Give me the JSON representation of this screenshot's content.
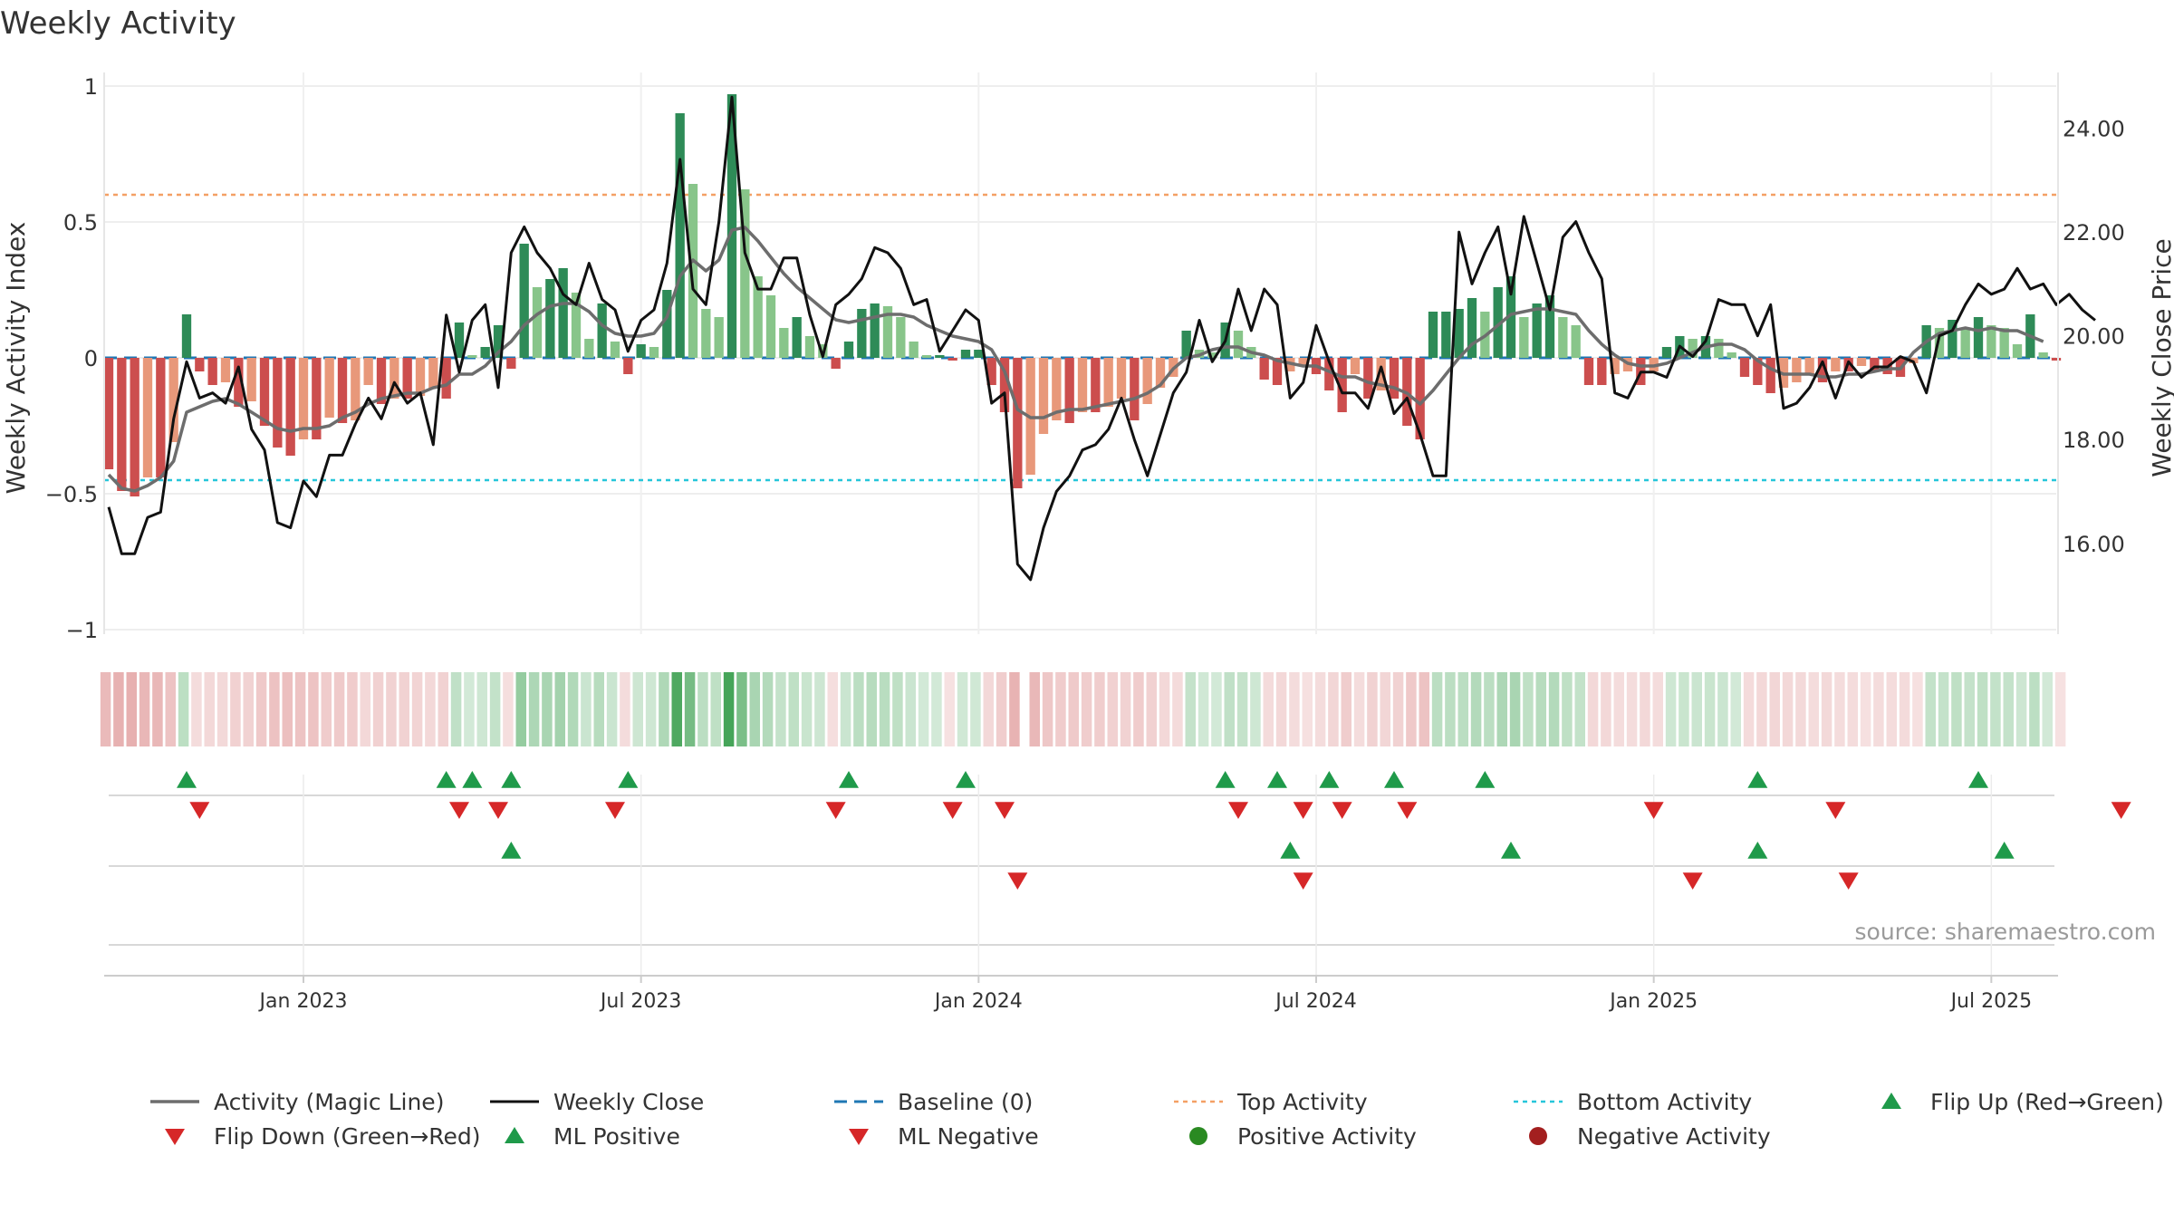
{
  "chart_data": {
    "type": "bar",
    "title": "Weekly Activity",
    "ylabel_left": "Weekly Activity Index",
    "ylabel_right": "Weekly Close Price",
    "source": "source: sharemaestro.com",
    "ylim_left": [
      -1,
      1
    ],
    "ylim_right": [
      14.25,
      24.9
    ],
    "left_ticks": [
      1,
      0.5,
      0,
      -0.5,
      -1
    ],
    "left_tick_labels": [
      "1",
      "0.5",
      "0",
      "−0.5",
      "−1"
    ],
    "right_ticks": [
      24,
      22,
      20,
      18,
      16
    ],
    "right_tick_labels": [
      "24.00",
      "22.00",
      "20.00",
      "18.00",
      "16.00"
    ],
    "x_tick_labels": [
      "Jan 2023",
      "Jul 2023",
      "Jan 2024",
      "Jul 2024",
      "Jan 2025",
      "Jul 2025"
    ],
    "x_tick_weeks": [
      15,
      41,
      67,
      93,
      119,
      145
    ],
    "top_activity": 0.6,
    "bottom_activity": -0.45,
    "baseline": 0,
    "activity": [
      -0.41,
      -0.49,
      -0.51,
      -0.44,
      -0.44,
      -0.31,
      0.16,
      -0.05,
      -0.1,
      -0.09,
      -0.18,
      -0.16,
      -0.25,
      -0.33,
      -0.36,
      -0.3,
      -0.3,
      -0.22,
      -0.24,
      -0.23,
      -0.1,
      -0.17,
      -0.15,
      -0.15,
      -0.14,
      -0.11,
      -0.15,
      0.13,
      0.01,
      0.04,
      0.12,
      -0.04,
      0.42,
      0.26,
      0.29,
      0.33,
      0.24,
      0.07,
      0.2,
      0.06,
      -0.06,
      0.05,
      0.04,
      0.25,
      0.9,
      0.64,
      0.18,
      0.15,
      0.97,
      0.62,
      0.3,
      0.23,
      0.11,
      0.15,
      0.08,
      0.05,
      -0.04,
      0.06,
      0.18,
      0.2,
      0.19,
      0.15,
      0.06,
      0.01,
      0.01,
      -0.01,
      0.03,
      0.03,
      -0.1,
      -0.2,
      -0.48,
      -0.43,
      -0.28,
      -0.23,
      -0.24,
      -0.2,
      -0.2,
      -0.18,
      -0.15,
      -0.23,
      -0.17,
      -0.11,
      -0.07,
      0.1,
      0.03,
      0.02,
      0.13,
      0.1,
      0.04,
      -0.08,
      -0.1,
      -0.05,
      -0.03,
      -0.06,
      -0.12,
      -0.2,
      -0.06,
      -0.15,
      -0.12,
      -0.15,
      -0.25,
      -0.3,
      0.17,
      0.17,
      0.18,
      0.22,
      0.17,
      0.26,
      0.3,
      0.15,
      0.2,
      0.23,
      0.15,
      0.12,
      -0.1,
      -0.1,
      -0.06,
      -0.05,
      -0.1,
      -0.05,
      0.04,
      0.08,
      0.07,
      0.08,
      0.07,
      0.02,
      -0.07,
      -0.1,
      -0.13,
      -0.11,
      -0.09,
      -0.06,
      -0.09,
      -0.05,
      -0.05,
      -0.03,
      -0.05,
      -0.06,
      -0.07,
      -0.02,
      0.12,
      0.11,
      0.14,
      0.11,
      0.15,
      0.12,
      0.11,
      0.05,
      0.16,
      0.02,
      -0.01
    ],
    "magic_line": [
      -0.43,
      -0.48,
      -0.49,
      -0.47,
      -0.44,
      -0.38,
      -0.2,
      -0.18,
      -0.16,
      -0.15,
      -0.17,
      -0.2,
      -0.23,
      -0.26,
      -0.27,
      -0.26,
      -0.26,
      -0.25,
      -0.22,
      -0.2,
      -0.17,
      -0.15,
      -0.14,
      -0.13,
      -0.13,
      -0.11,
      -0.1,
      -0.06,
      -0.06,
      -0.03,
      0.02,
      0.06,
      0.12,
      0.16,
      0.19,
      0.2,
      0.2,
      0.17,
      0.12,
      0.09,
      0.08,
      0.08,
      0.09,
      0.15,
      0.3,
      0.36,
      0.32,
      0.36,
      0.47,
      0.48,
      0.43,
      0.37,
      0.31,
      0.26,
      0.22,
      0.18,
      0.14,
      0.13,
      0.14,
      0.15,
      0.16,
      0.16,
      0.15,
      0.12,
      0.1,
      0.08,
      0.07,
      0.06,
      0.03,
      -0.05,
      -0.19,
      -0.22,
      -0.22,
      -0.2,
      -0.19,
      -0.19,
      -0.18,
      -0.17,
      -0.16,
      -0.15,
      -0.13,
      -0.1,
      -0.04,
      0,
      0.01,
      0.03,
      0.04,
      0.04,
      0.02,
      0.01,
      -0.01,
      -0.02,
      -0.03,
      -0.03,
      -0.05,
      -0.07,
      -0.07,
      -0.09,
      -0.1,
      -0.11,
      -0.13,
      -0.17,
      -0.12,
      -0.06,
      0,
      0.05,
      0.08,
      0.12,
      0.16,
      0.17,
      0.18,
      0.18,
      0.17,
      0.16,
      0.1,
      0.05,
      0.01,
      -0.02,
      -0.03,
      -0.03,
      -0.02,
      0,
      0.02,
      0.04,
      0.05,
      0.05,
      0.03,
      -0.01,
      -0.04,
      -0.06,
      -0.06,
      -0.06,
      -0.07,
      -0.07,
      -0.06,
      -0.06,
      -0.05,
      -0.04,
      -0.04,
      0.02,
      0.06,
      0.09,
      0.1,
      0.11,
      0.1,
      0.11,
      0.1,
      0.1,
      0.08,
      0.06
    ],
    "weekly_close": [
      16.7,
      15.8,
      15.8,
      16.5,
      16.6,
      18.4,
      19.5,
      18.8,
      18.9,
      18.7,
      19.4,
      18.2,
      17.8,
      16.4,
      16.3,
      17.2,
      16.9,
      17.7,
      17.7,
      18.3,
      18.8,
      18.4,
      19.1,
      18.7,
      18.9,
      17.9,
      20.4,
      19.3,
      20.3,
      20.6,
      19.0,
      21.6,
      22.1,
      21.6,
      21.3,
      20.8,
      20.6,
      21.4,
      20.7,
      20.5,
      19.7,
      20.3,
      20.5,
      21.4,
      23.4,
      20.9,
      20.6,
      22.2,
      24.6,
      21.6,
      20.9,
      20.9,
      21.5,
      21.5,
      20.4,
      19.6,
      20.6,
      20.8,
      21.1,
      21.7,
      21.6,
      21.3,
      20.6,
      20.7,
      19.7,
      20.1,
      20.5,
      20.3,
      18.7,
      18.9,
      15.6,
      15.3,
      16.3,
      17.0,
      17.3,
      17.8,
      17.9,
      18.2,
      18.8,
      18.0,
      17.3,
      18.1,
      18.9,
      19.3,
      20.3,
      19.5,
      19.9,
      20.9,
      20.1,
      20.9,
      20.6,
      18.8,
      19.1,
      20.2,
      19.5,
      18.9,
      18.9,
      18.6,
      19.4,
      18.5,
      18.8,
      18.1,
      17.3,
      17.3,
      22.0,
      21.0,
      21.6,
      22.1,
      20.8,
      22.3,
      21.4,
      20.5,
      21.9,
      22.2,
      21.6,
      21.1,
      18.9,
      18.8,
      19.3,
      19.3,
      19.2,
      19.8,
      19.6,
      19.9,
      20.7,
      20.6,
      20.6,
      20.0,
      20.6,
      18.6,
      18.7,
      19.0,
      19.5,
      18.8,
      19.5,
      19.2,
      19.4,
      19.4,
      19.6,
      19.5,
      18.9,
      20.0,
      20.1,
      20.6,
      21.0,
      20.8,
      20.9,
      21.3,
      20.9,
      21.0,
      20.6,
      20.8,
      20.5,
      20.3
    ],
    "heatmap_gap_after_week": 70,
    "markers": {
      "flip_up": [
        6,
        26,
        28,
        31,
        40,
        57,
        66,
        86,
        90,
        94,
        99,
        106,
        127,
        144
      ],
      "flip_down": [
        7,
        27,
        30,
        39,
        56,
        65,
        69,
        87,
        92,
        95,
        100,
        119,
        133,
        155
      ],
      "ml_positive": [
        31,
        91,
        108,
        127,
        146
      ],
      "ml_negative": [
        70,
        92,
        122,
        134
      ]
    },
    "colors": {
      "positive_dark": "#2e8b57",
      "positive_light": "#88c58a",
      "negative_dark": "#cc4e4e",
      "negative_light": "#e8987a",
      "magic_line": "#6d6d6d",
      "close": "#111111",
      "baseline": "#1f77b4",
      "top": "#f4a064",
      "bottom": "#26c6da",
      "up_marker": "#1f9a4a",
      "down_marker": "#d62728",
      "pos_dot": "#2a8a22",
      "neg_dot": "#a31f1f"
    },
    "legend": [
      {
        "icon": "line-gray-icon",
        "label": "Activity (Magic Line)"
      },
      {
        "icon": "line-black-icon",
        "label": "Weekly Close"
      },
      {
        "icon": "dashed-blue-icon",
        "label": "Baseline (0)"
      },
      {
        "icon": "dotted-orange-icon",
        "label": "Top Activity"
      },
      {
        "icon": "dotted-cyan-icon",
        "label": "Bottom Activity"
      },
      {
        "icon": "triangle-up-icon",
        "label": "Flip Up (Red→Green)"
      },
      {
        "icon": "triangle-down-icon",
        "label": "Flip Down (Green→Red)"
      },
      {
        "icon": "triangle-up-icon",
        "label": "ML Positive"
      },
      {
        "icon": "triangle-down-icon",
        "label": "ML Negative"
      },
      {
        "icon": "dot-green-icon",
        "label": "Positive Activity"
      },
      {
        "icon": "dot-red-icon",
        "label": "Negative Activity"
      }
    ]
  }
}
